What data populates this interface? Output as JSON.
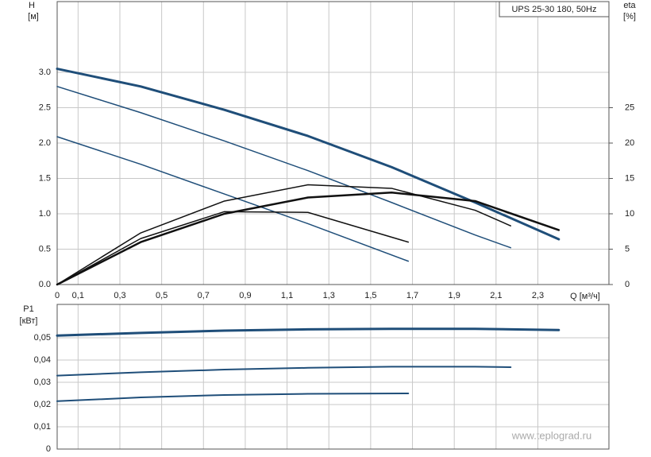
{
  "chart_data": [
    {
      "type": "line",
      "legend_label": "UPS 25-30 180, 50Hz",
      "ylabel": "H",
      "yunit": "[м]",
      "y2label": "eta",
      "y2unit": "[%]",
      "xlabel": "Q [м³/ч]",
      "xlim": [
        0,
        2.64
      ],
      "xticks": [
        0,
        {
          "value": 0.1,
          "label": "0,1"
        },
        {
          "value": 0.3,
          "label": "0,3"
        },
        {
          "value": 0.5,
          "label": "0,5"
        },
        {
          "value": 0.7,
          "label": "0,7"
        },
        {
          "value": 0.9,
          "label": "0,9"
        },
        {
          "value": 1.1,
          "label": "1,1"
        },
        {
          "value": 1.3,
          "label": "1,3"
        },
        {
          "value": 1.5,
          "label": "1,5"
        },
        {
          "value": 1.7,
          "label": "1,7"
        },
        {
          "value": 1.9,
          "label": "1,9"
        },
        {
          "value": 2.1,
          "label": "2,1"
        },
        {
          "value": 2.3,
          "label": "2,3"
        }
      ],
      "ylim": [
        0,
        4.0
      ],
      "yticks": [
        {
          "value": 0,
          "label": "0.0"
        },
        0.5,
        {
          "value": 1,
          "label": "1.0"
        },
        1.5,
        {
          "value": 2,
          "label": "2.0"
        },
        2.5,
        {
          "value": 3,
          "label": "3.0"
        }
      ],
      "y2lim": [
        0,
        40
      ],
      "y2ticks": [
        0,
        5,
        10,
        15,
        20,
        25
      ],
      "grid": true,
      "series": [
        {
          "color": "#1f4e79",
          "width": 3,
          "x": [
            0,
            0.4,
            0.8,
            1.2,
            1.6,
            2.0,
            2.4
          ],
          "values": [
            3.05,
            2.8,
            2.47,
            2.1,
            1.66,
            1.16,
            0.64
          ]
        },
        {
          "color": "#1f4e79",
          "width": 1.5,
          "x": [
            0,
            0.4,
            0.8,
            1.2,
            1.6,
            2.0,
            2.17
          ],
          "values": [
            2.8,
            2.43,
            2.03,
            1.61,
            1.16,
            0.7,
            0.52
          ]
        },
        {
          "color": "#1f4e79",
          "width": 1.5,
          "x": [
            0,
            0.4,
            0.8,
            1.2,
            1.68
          ],
          "values": [
            2.09,
            1.7,
            1.28,
            0.86,
            0.33
          ]
        },
        {
          "color": "#111111",
          "width": 2.5,
          "axis": "y2",
          "x": [
            0,
            0.4,
            0.8,
            1.2,
            1.6,
            2.0,
            2.4
          ],
          "values": [
            0,
            6.0,
            10.0,
            12.3,
            13.0,
            11.8,
            7.7
          ]
        },
        {
          "color": "#111111",
          "width": 1.5,
          "axis": "y2",
          "x": [
            0,
            0.4,
            0.8,
            1.2,
            1.6,
            2.0,
            2.17
          ],
          "values": [
            0,
            7.3,
            11.8,
            14.1,
            13.6,
            10.5,
            8.3
          ]
        },
        {
          "color": "#111111",
          "width": 1.5,
          "axis": "y2",
          "x": [
            0,
            0.4,
            0.8,
            1.2,
            1.68
          ],
          "values": [
            0,
            6.5,
            10.3,
            10.2,
            6.0
          ]
        }
      ]
    },
    {
      "type": "line",
      "ylabel": "P1",
      "yunit": "[кВт]",
      "xlim": [
        0,
        2.64
      ],
      "ylim": [
        0,
        0.065
      ],
      "yticks": [
        0,
        {
          "value": 0.01,
          "label": "0,01"
        },
        {
          "value": 0.02,
          "label": "0,02"
        },
        {
          "value": 0.03,
          "label": "0,03"
        },
        {
          "value": 0.04,
          "label": "0,04"
        },
        {
          "value": 0.05,
          "label": "0,05"
        }
      ],
      "grid": true,
      "series": [
        {
          "color": "#1f4e79",
          "width": 3,
          "x": [
            0,
            0.4,
            0.8,
            1.2,
            1.6,
            2.0,
            2.4
          ],
          "values": [
            0.051,
            0.0522,
            0.0532,
            0.0538,
            0.054,
            0.054,
            0.0535
          ]
        },
        {
          "color": "#1f4e79",
          "width": 2,
          "x": [
            0,
            0.4,
            0.8,
            1.2,
            1.6,
            2.0,
            2.17
          ],
          "values": [
            0.033,
            0.0345,
            0.0357,
            0.0365,
            0.037,
            0.037,
            0.0368
          ]
        },
        {
          "color": "#1f4e79",
          "width": 2,
          "x": [
            0,
            0.4,
            0.8,
            1.2,
            1.68
          ],
          "values": [
            0.0215,
            0.0232,
            0.0243,
            0.0248,
            0.025
          ]
        }
      ]
    }
  ],
  "watermark": "www.teplograd.ru"
}
